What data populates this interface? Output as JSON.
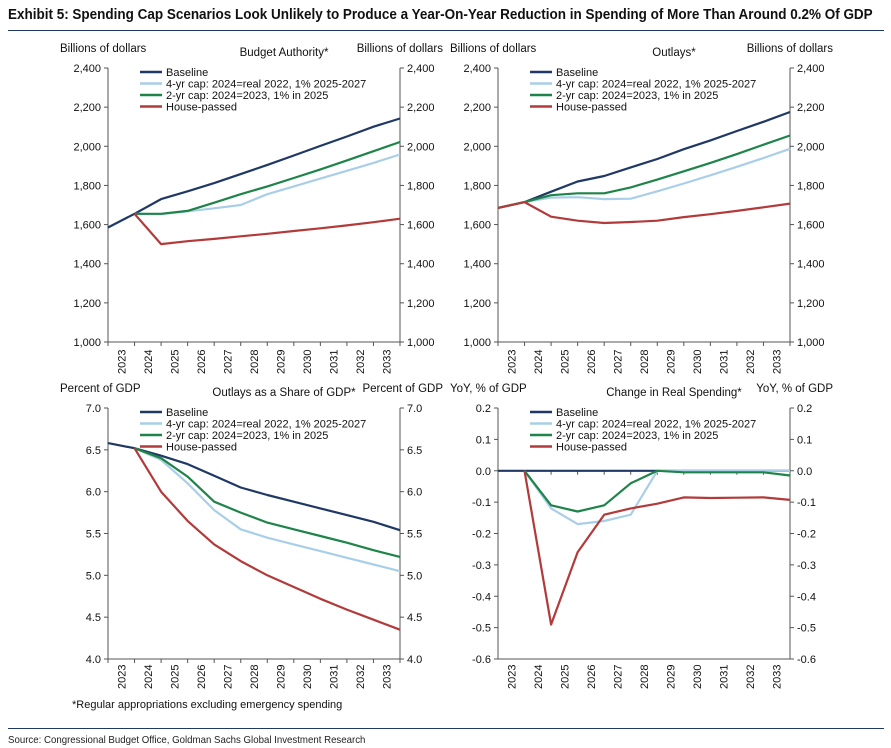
{
  "exhibit_title": "Exhibit 5: Spending Cap Scenarios Look Unlikely to Produce a Year-On-Year Reduction in Spending of More Than Around 0.2% Of GDP",
  "footnote": "*Regular appropriations excluding emergency spending",
  "source": "Source: Congressional Budget Office, Goldman Sachs Global Investment Research",
  "series_colors": {
    "Baseline": "#1f3864",
    "4-yr cap: 2024=real 2022, 1% 2025-2027": "#a9cfe8",
    "2-yr cap: 2024=2023, 1% in 2025": "#1e8449",
    "House-passed": "#b33a3a"
  },
  "chart_data": [
    {
      "type": "line",
      "title": "Budget Authority*",
      "ylabel_left": "Billions of dollars",
      "ylabel_right": "Billions of dollars",
      "ylim": [
        1000,
        2400
      ],
      "yticks": [
        1000,
        1200,
        1400,
        1600,
        1800,
        2000,
        2200,
        2400
      ],
      "ytick_labels": [
        "1,000",
        "1,200",
        "1,400",
        "1,600",
        "1,800",
        "2,000",
        "2,200",
        "2,400"
      ],
      "x_start": 2022,
      "categories": [
        "2023",
        "2024",
        "2025",
        "2026",
        "2027",
        "2028",
        "2029",
        "2030",
        "2031",
        "2032",
        "2033"
      ],
      "grid": false,
      "legend_position": "top-left",
      "series": [
        {
          "name": "Baseline",
          "x": [
            2022,
            2023,
            2024,
            2025,
            2026,
            2027,
            2028,
            2029,
            2030,
            2031,
            2032,
            2033
          ],
          "values": [
            1585,
            1655,
            1730,
            1770,
            1812,
            1858,
            1905,
            1953,
            2002,
            2050,
            2100,
            2142
          ]
        },
        {
          "name": "4-yr cap: 2024=real 2022, 1% 2025-2027",
          "x": [
            2023,
            2024,
            2025,
            2026,
            2027,
            2028,
            2029,
            2030,
            2031,
            2032,
            2033
          ],
          "values": [
            1655,
            1653,
            1668,
            1683,
            1700,
            1755,
            1795,
            1835,
            1875,
            1915,
            1958
          ]
        },
        {
          "name": "2-yr cap: 2024=2023, 1% in 2025",
          "x": [
            2023,
            2024,
            2025,
            2026,
            2027,
            2028,
            2029,
            2030,
            2031,
            2032,
            2033
          ],
          "values": [
            1655,
            1655,
            1670,
            1712,
            1755,
            1795,
            1838,
            1882,
            1928,
            1975,
            2022
          ]
        },
        {
          "name": "House-passed",
          "x": [
            2023,
            2024,
            2025,
            2026,
            2027,
            2028,
            2029,
            2030,
            2031,
            2032,
            2033
          ],
          "values": [
            1655,
            1500,
            1515,
            1527,
            1540,
            1553,
            1567,
            1581,
            1596,
            1612,
            1630
          ]
        }
      ]
    },
    {
      "type": "line",
      "title": "Outlays*",
      "ylabel_left": "Billions of dollars",
      "ylabel_right": "Billions of dollars",
      "ylim": [
        1000,
        2400
      ],
      "yticks": [
        1000,
        1200,
        1400,
        1600,
        1800,
        2000,
        2200,
        2400
      ],
      "ytick_labels": [
        "1,000",
        "1,200",
        "1,400",
        "1,600",
        "1,800",
        "2,000",
        "2,200",
        "2,400"
      ],
      "x_start": 2022,
      "categories": [
        "2023",
        "2024",
        "2025",
        "2026",
        "2027",
        "2028",
        "2029",
        "2030",
        "2031",
        "2032",
        "2033"
      ],
      "grid": false,
      "legend_position": "top-left",
      "series": [
        {
          "name": "Baseline",
          "x": [
            2022,
            2023,
            2024,
            2025,
            2026,
            2027,
            2028,
            2029,
            2030,
            2031,
            2032,
            2033
          ],
          "values": [
            1685,
            1715,
            1768,
            1820,
            1848,
            1892,
            1935,
            1985,
            2030,
            2078,
            2125,
            2175
          ]
        },
        {
          "name": "4-yr cap: 2024=real 2022, 1% 2025-2027",
          "x": [
            2022,
            2023,
            2024,
            2025,
            2026,
            2027,
            2028,
            2029,
            2030,
            2031,
            2032,
            2033
          ],
          "values": [
            1685,
            1715,
            1738,
            1740,
            1730,
            1732,
            1770,
            1810,
            1852,
            1895,
            1940,
            1987
          ]
        },
        {
          "name": "2-yr cap: 2024=2023, 1% in 2025",
          "x": [
            2022,
            2023,
            2024,
            2025,
            2026,
            2027,
            2028,
            2029,
            2030,
            2031,
            2032,
            2033
          ],
          "values": [
            1685,
            1715,
            1750,
            1760,
            1760,
            1790,
            1830,
            1872,
            1915,
            1960,
            2008,
            2055
          ]
        },
        {
          "name": "House-passed",
          "x": [
            2022,
            2023,
            2024,
            2025,
            2026,
            2027,
            2028,
            2029,
            2030,
            2031,
            2032,
            2033
          ],
          "values": [
            1685,
            1715,
            1640,
            1620,
            1608,
            1613,
            1620,
            1638,
            1653,
            1670,
            1688,
            1707
          ]
        }
      ]
    },
    {
      "type": "line",
      "title": "Outlays as a Share of GDP*",
      "ylabel_left": "Percent of GDP",
      "ylabel_right": "Percent of GDP",
      "ylim": [
        4.0,
        7.0
      ],
      "yticks": [
        4.0,
        4.5,
        5.0,
        5.5,
        6.0,
        6.5,
        7.0
      ],
      "ytick_labels": [
        "4.0",
        "4.5",
        "5.0",
        "5.5",
        "6.0",
        "6.5",
        "7.0"
      ],
      "x_start": 2022,
      "categories": [
        "2023",
        "2024",
        "2025",
        "2026",
        "2027",
        "2028",
        "2029",
        "2030",
        "2031",
        "2032",
        "2033"
      ],
      "grid": false,
      "legend_position": "top-left",
      "series": [
        {
          "name": "Baseline",
          "x": [
            2022,
            2023,
            2024,
            2025,
            2026,
            2027,
            2028,
            2029,
            2030,
            2031,
            2032,
            2033
          ],
          "values": [
            6.58,
            6.52,
            6.43,
            6.33,
            6.19,
            6.05,
            5.96,
            5.88,
            5.8,
            5.72,
            5.64,
            5.54
          ]
        },
        {
          "name": "4-yr cap: 2024=real 2022, 1% 2025-2027",
          "x": [
            2023,
            2024,
            2025,
            2026,
            2027,
            2028,
            2029,
            2030,
            2031,
            2032,
            2033
          ],
          "values": [
            6.52,
            6.38,
            6.1,
            5.78,
            5.55,
            5.45,
            5.37,
            5.29,
            5.21,
            5.13,
            5.05
          ]
        },
        {
          "name": "2-yr cap: 2024=2023, 1% in 2025",
          "x": [
            2023,
            2024,
            2025,
            2026,
            2027,
            2028,
            2029,
            2030,
            2031,
            2032,
            2033
          ],
          "values": [
            6.52,
            6.4,
            6.18,
            5.88,
            5.75,
            5.63,
            5.55,
            5.47,
            5.39,
            5.3,
            5.22
          ]
        },
        {
          "name": "House-passed",
          "x": [
            2023,
            2024,
            2025,
            2026,
            2027,
            2028,
            2029,
            2030,
            2031,
            2032,
            2033
          ],
          "values": [
            6.52,
            6.0,
            5.65,
            5.37,
            5.17,
            5.0,
            4.86,
            4.72,
            4.59,
            4.47,
            4.35
          ]
        }
      ]
    },
    {
      "type": "line",
      "title": "Change in Real Spending*",
      "ylabel_left": "YoY, % of GDP",
      "ylabel_right": "YoY, % of GDP",
      "ylim": [
        -0.6,
        0.2
      ],
      "yticks": [
        -0.6,
        -0.5,
        -0.4,
        -0.3,
        -0.2,
        -0.1,
        0.0,
        0.1,
        0.2
      ],
      "ytick_labels": [
        "-0.6",
        "-0.5",
        "-0.4",
        "-0.3",
        "-0.2",
        "-0.1",
        "0.0",
        "0.1",
        "0.2"
      ],
      "x_start": 2022,
      "categories": [
        "2023",
        "2024",
        "2025",
        "2026",
        "2027",
        "2028",
        "2029",
        "2030",
        "2031",
        "2032",
        "2033"
      ],
      "grid": false,
      "legend_position": "top-left",
      "series": [
        {
          "name": "Baseline",
          "x": [
            2022,
            2023,
            2024,
            2025,
            2026,
            2027,
            2028,
            2029,
            2030,
            2031,
            2032,
            2033
          ],
          "values": [
            0,
            0,
            0,
            0,
            0,
            0,
            0,
            0,
            0,
            0,
            0,
            0
          ]
        },
        {
          "name": "4-yr cap: 2024=real 2022, 1% 2025-2027",
          "x": [
            2023,
            2024,
            2025,
            2026,
            2027,
            2028,
            2029,
            2030,
            2031,
            2032,
            2033
          ],
          "values": [
            0,
            -0.12,
            -0.17,
            -0.16,
            -0.14,
            0.0,
            0.0,
            0.0,
            0.0,
            0.0,
            0.0
          ]
        },
        {
          "name": "2-yr cap: 2024=2023, 1% in 2025",
          "x": [
            2023,
            2024,
            2025,
            2026,
            2027,
            2028,
            2029,
            2030,
            2031,
            2032,
            2033
          ],
          "values": [
            0,
            -0.11,
            -0.13,
            -0.11,
            -0.04,
            0.0,
            -0.005,
            -0.005,
            -0.005,
            -0.005,
            -0.015
          ]
        },
        {
          "name": "House-passed",
          "x": [
            2023,
            2024,
            2025,
            2026,
            2027,
            2028,
            2029,
            2030,
            2031,
            2032,
            2033
          ],
          "values": [
            0,
            -0.49,
            -0.26,
            -0.14,
            -0.12,
            -0.105,
            -0.085,
            -0.087,
            -0.086,
            -0.085,
            -0.093
          ]
        }
      ]
    }
  ]
}
